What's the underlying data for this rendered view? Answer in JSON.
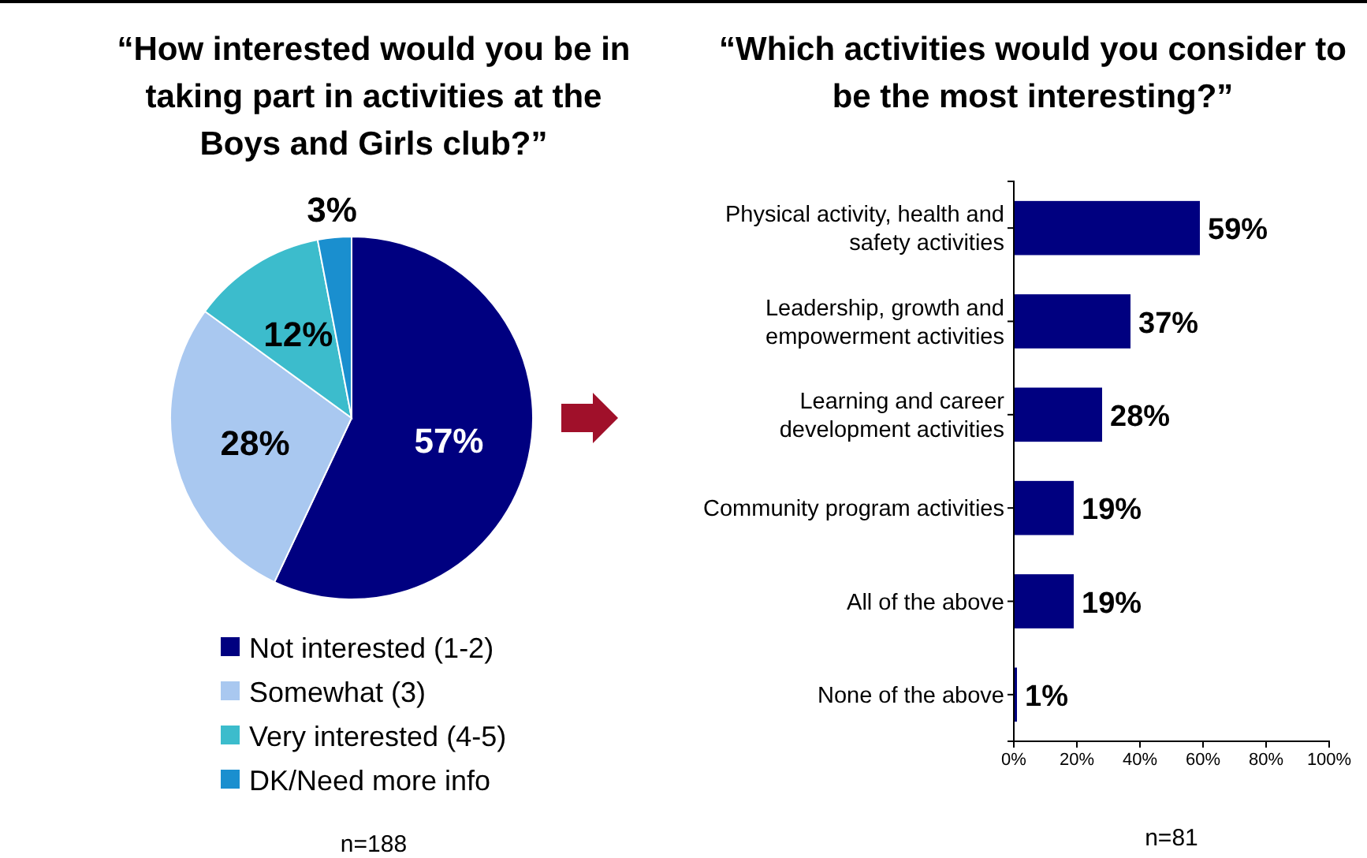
{
  "chart_data": [
    {
      "type": "pie",
      "title": "“How interested would you be in taking part in activities at the Boys and Girls club?”",
      "categories": [
        "Not interested (1-2)",
        "Somewhat (3)",
        "Very interested (4-5)",
        "DK/Need more info"
      ],
      "values": [
        57,
        28,
        12,
        3
      ],
      "colors": [
        "#000080",
        "#a9c8f0",
        "#3cbccc",
        "#1a8fcf"
      ],
      "value_labels": [
        "57%",
        "28%",
        "12%",
        "3%"
      ],
      "legend": "bottom",
      "annotations": [
        "n=188"
      ]
    },
    {
      "type": "bar",
      "orientation": "horizontal",
      "title": "“Which activities would you consider to be the most interesting?”",
      "categories": [
        "Physical activity, health and safety activities",
        "Leadership, growth and empowerment activities",
        "Learning and career development activities",
        "Community program activities",
        "All of the above",
        "None of the above"
      ],
      "values": [
        59,
        37,
        28,
        19,
        19,
        1
      ],
      "color": "#000080",
      "value_labels": [
        "59%",
        "37%",
        "28%",
        "19%",
        "19%",
        "1%"
      ],
      "xlim": [
        0,
        100
      ],
      "xticks": [
        {
          "value": 0,
          "label": "0%"
        },
        {
          "value": 20,
          "label": "20%"
        },
        {
          "value": 40,
          "label": "40%"
        },
        {
          "value": 60,
          "label": "60%"
        },
        {
          "value": 80,
          "label": "80%"
        },
        {
          "value": 100,
          "label": "100%"
        }
      ],
      "annotations": [
        "n=81"
      ]
    }
  ]
}
